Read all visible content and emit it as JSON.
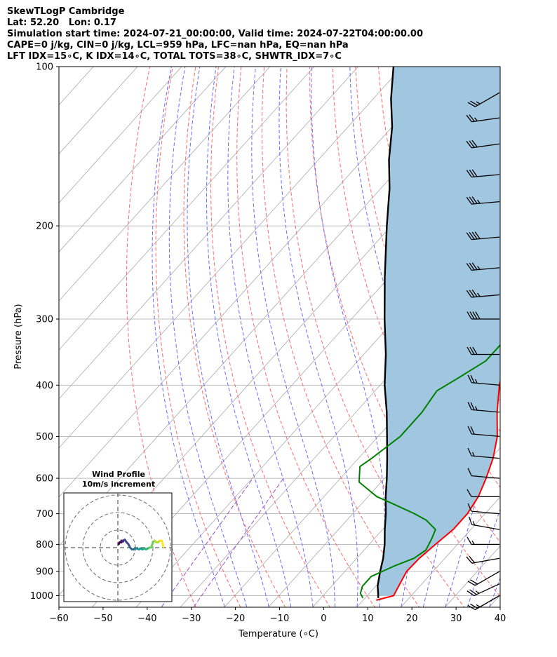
{
  "titles": {
    "line1": "SkewTLogP Cambridge",
    "line2": "Lat: 52.20   Lon: 0.17",
    "line3": "Simulation start time: 2024-07-21_00:00:00, Valid time: 2024-07-22T04:00:00.00",
    "line4": "CAPE=0 j/kg, CIN=0 j/kg, LCL=959 hPa, LFC=nan hPa, EQ=nan hPa",
    "line5": "LFT IDX=15∘C, K IDX=14∘C, TOTAL TOTS=38∘C, SHWTR_IDX=7∘C"
  },
  "chart_data": {
    "type": "line",
    "title": "SkewTLogP Cambridge",
    "xlabel": "Temperature (∘C)",
    "ylabel": "Pressure (hPa)",
    "xlim": [
      -60,
      40
    ],
    "ylim": [
      1050,
      100
    ],
    "y_scale": "log",
    "x_ticks": [
      "−60",
      "−50",
      "−40",
      "−30",
      "−20",
      "−10",
      "0",
      "10",
      "20",
      "30",
      "40"
    ],
    "y_ticks": [
      "100",
      "200",
      "300",
      "400",
      "500",
      "600",
      "700",
      "800",
      "900",
      "1000"
    ],
    "grid": true,
    "colors": {
      "temperature": "#ff0000",
      "dewpoint": "#008000",
      "parcel": "#000000",
      "shade": "#a1c6e0",
      "dry_adiabats": "#ff6a6a",
      "moist_adiabats": "#6a6aff",
      "mixing_ratio": "#9a50c8",
      "isotherms": "#aaaaaa"
    },
    "temperature": {
      "p": [
        1020,
        1000,
        950,
        900,
        850,
        800,
        750,
        700,
        650,
        600,
        550,
        500,
        450,
        400,
        350,
        300,
        270,
        250,
        230,
        200,
        170,
        150,
        130,
        115,
        100
      ],
      "t": [
        13,
        16,
        15,
        14,
        14.2,
        15,
        16,
        16,
        15,
        13,
        10.5,
        7,
        2,
        -3,
        -7.5,
        -12,
        -14,
        -14,
        -13,
        -10,
        -7,
        -5,
        -3,
        0,
        4
      ]
    },
    "dewpoint": {
      "p": [
        1010,
        990,
        960,
        920,
        880,
        850,
        820,
        780,
        750,
        720,
        700,
        670,
        650,
        610,
        570,
        550,
        500,
        450,
        410,
        390,
        360,
        330,
        300,
        270,
        240,
        220,
        200,
        180,
        165,
        155,
        145,
        130,
        115,
        100
      ],
      "t": [
        9.5,
        8,
        7,
        7,
        10,
        13,
        14,
        13,
        12,
        8,
        4,
        -3,
        -8,
        -15,
        -18,
        -17,
        -15,
        -15,
        -16,
        -14,
        -11,
        -11,
        -11.5,
        -14,
        -15.5,
        -16.5,
        -17.5,
        -17,
        -18,
        -20,
        -22,
        -18,
        -13,
        -8
      ]
    },
    "parcel": {
      "p": [
        1010,
        980,
        959,
        900,
        850,
        800,
        750,
        700,
        650,
        600,
        550,
        500,
        450,
        400,
        350,
        300,
        250,
        200,
        170,
        150,
        130,
        115,
        100
      ],
      "t": [
        13,
        11.5,
        10.4,
        8,
        6,
        3.5,
        0.5,
        -2.5,
        -6,
        -9.5,
        -13.5,
        -18,
        -23,
        -29,
        -35,
        -42.5,
        -51,
        -61,
        -68,
        -74,
        -80,
        -86,
        -92
      ]
    },
    "wind_barbs": [
      {
        "p": 1000,
        "dir": 240,
        "kt": 25
      },
      {
        "p": 950,
        "dir": 245,
        "kt": 25
      },
      {
        "p": 900,
        "dir": 240,
        "kt": 20
      },
      {
        "p": 850,
        "dir": 260,
        "kt": 20
      },
      {
        "p": 800,
        "dir": 270,
        "kt": 15
      },
      {
        "p": 750,
        "dir": 280,
        "kt": 15
      },
      {
        "p": 700,
        "dir": 275,
        "kt": 10
      },
      {
        "p": 650,
        "dir": 270,
        "kt": 10
      },
      {
        "p": 600,
        "dir": 275,
        "kt": 10
      },
      {
        "p": 550,
        "dir": 275,
        "kt": 15
      },
      {
        "p": 500,
        "dir": 275,
        "kt": 20
      },
      {
        "p": 450,
        "dir": 275,
        "kt": 25
      },
      {
        "p": 400,
        "dir": 275,
        "kt": 25
      },
      {
        "p": 350,
        "dir": 270,
        "kt": 30
      },
      {
        "p": 300,
        "dir": 270,
        "kt": 40
      },
      {
        "p": 270,
        "dir": 265,
        "kt": 35
      },
      {
        "p": 240,
        "dir": 265,
        "kt": 35
      },
      {
        "p": 210,
        "dir": 265,
        "kt": 40
      },
      {
        "p": 180,
        "dir": 265,
        "kt": 35
      },
      {
        "p": 160,
        "dir": 265,
        "kt": 30
      },
      {
        "p": 140,
        "dir": 262,
        "kt": 30
      },
      {
        "p": 125,
        "dir": 262,
        "kt": 25
      },
      {
        "p": 112,
        "dir": 240,
        "kt": 25
      }
    ],
    "inset": {
      "title_line1": "Wind Profile",
      "title_line2": "10m/s increment",
      "type": "hodograph",
      "u": [
        0.5,
        1,
        2,
        2,
        3,
        3,
        4,
        5,
        6,
        7,
        8,
        9,
        10,
        11,
        12,
        13,
        14,
        15,
        16,
        17,
        18,
        19,
        20,
        21,
        22,
        23,
        24,
        25,
        26
      ],
      "v": [
        2,
        3,
        3,
        4,
        3.5,
        4,
        4.5,
        3,
        2,
        0,
        -1,
        -1,
        -0.5,
        -0.5,
        -1,
        -0.5,
        -1,
        -0.5,
        -1,
        -0.5,
        0,
        0,
        3,
        4,
        3,
        3,
        4,
        4,
        0.5
      ]
    }
  }
}
